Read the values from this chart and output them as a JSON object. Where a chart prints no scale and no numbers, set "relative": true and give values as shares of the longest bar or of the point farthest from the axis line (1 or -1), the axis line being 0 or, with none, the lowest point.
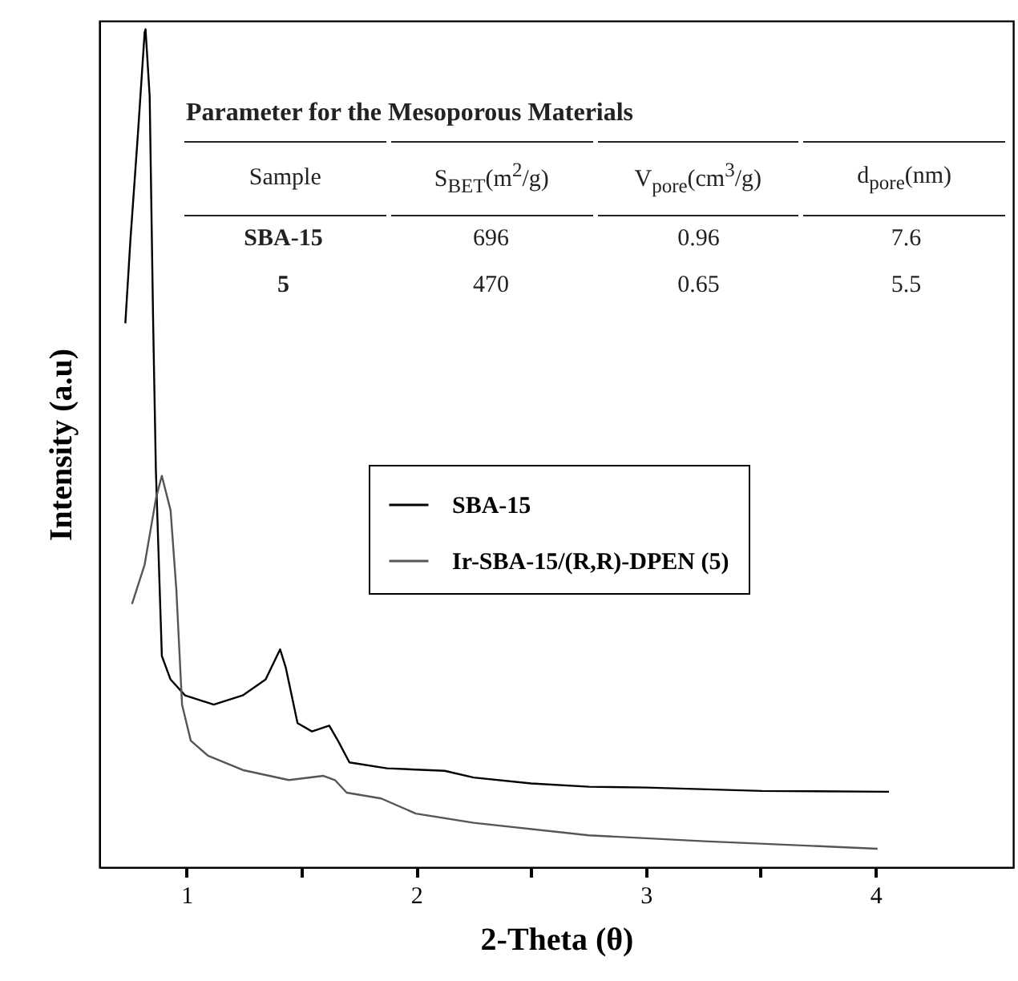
{
  "chart_data": {
    "type": "line",
    "xlabel": "2-Theta (θ)",
    "ylabel": "Intensity (a.u)",
    "relative": true,
    "xlim": [
      0.62,
      4.6
    ],
    "xticks": [
      1,
      {
        "value": 1.5,
        "label": null
      },
      2,
      {
        "value": 2.5,
        "label": null
      },
      3,
      {
        "value": 3.5,
        "label": null
      },
      4
    ],
    "legend": "right",
    "grid": false,
    "annotations": [
      "Parameter for the Mesoporous Materials",
      "Sample",
      "S$_{BET}$(m$^{2}$/g)",
      "V$_{pore}$(cm$^{3}$/g)",
      "d$_{pore}$(nm)",
      "SBA-15",
      "696",
      "0.96",
      "7.6",
      "5",
      "470",
      "0.65",
      "5.5"
    ],
    "series": [
      {
        "name": "SBA-15",
        "color": "#000000",
        "x": [
          0.733,
          0.755,
          0.788,
          0.817,
          0.821,
          0.839,
          0.854,
          0.866,
          0.892,
          0.93,
          0.993,
          1.118,
          1.244,
          1.344,
          1.407,
          1.432,
          1.483,
          1.546,
          1.621,
          1.659,
          1.709,
          1.872,
          2.124,
          2.25,
          2.5,
          2.752,
          3.003,
          3.506,
          4.059
        ],
        "values": [
          0.649,
          0.748,
          0.876,
          0.996,
          1.0,
          0.92,
          0.652,
          0.474,
          0.252,
          0.224,
          0.205,
          0.194,
          0.205,
          0.224,
          0.26,
          0.238,
          0.172,
          0.162,
          0.169,
          0.151,
          0.125,
          0.118,
          0.115,
          0.107,
          0.1,
          0.096,
          0.095,
          0.091,
          0.09
        ]
      },
      {
        "name": "Ir-SBA-15/(R,R)-DPEN (5)",
        "color": "#555555",
        "x": [
          0.762,
          0.817,
          0.867,
          0.892,
          0.93,
          0.955,
          0.98,
          1.018,
          1.093,
          1.244,
          1.445,
          1.596,
          1.646,
          1.697,
          1.847,
          1.998,
          2.25,
          2.752,
          3.255,
          4.009
        ],
        "values": [
          0.314,
          0.361,
          0.441,
          0.467,
          0.426,
          0.332,
          0.194,
          0.151,
          0.133,
          0.116,
          0.104,
          0.109,
          0.104,
          0.089,
          0.082,
          0.064,
          0.053,
          0.038,
          0.031,
          0.022
        ]
      }
    ]
  }
}
